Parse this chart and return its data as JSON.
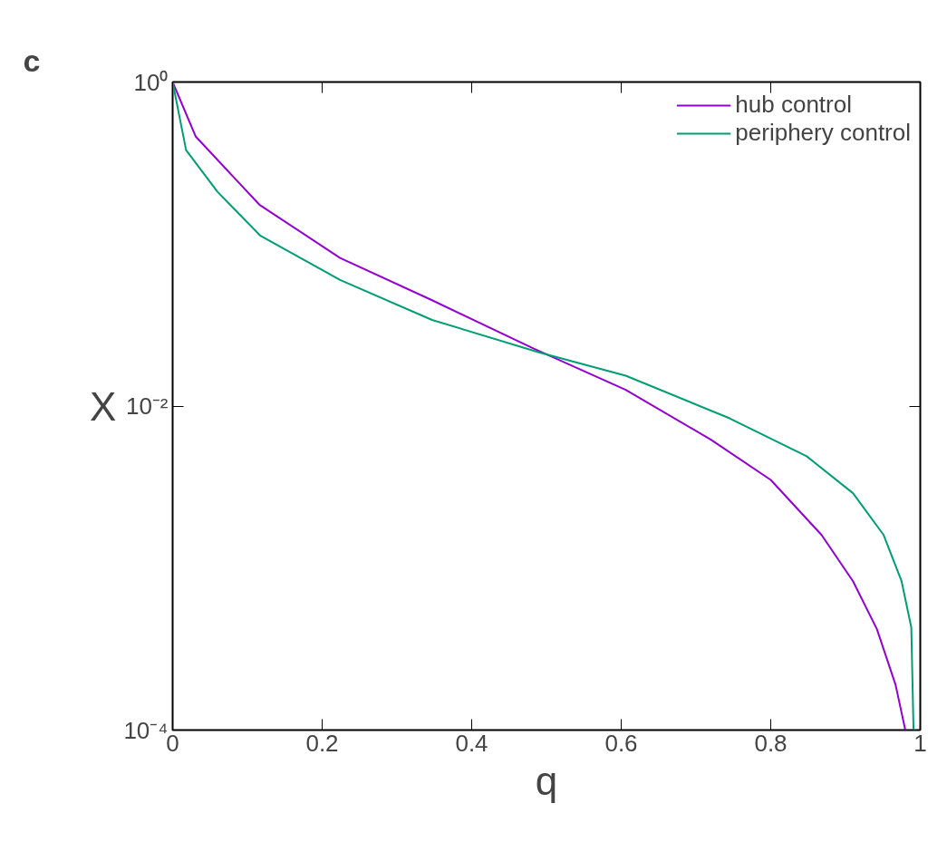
{
  "chart_data": {
    "type": "line",
    "title": "c",
    "xlabel": "q",
    "ylabel": "X",
    "log": "y",
    "xlim": [
      0,
      1
    ],
    "ylim": [
      0.0001,
      1
    ],
    "xticks": [
      0,
      0.2,
      0.4,
      0.6,
      0.8,
      1
    ],
    "yticks": [
      {
        "value": 1,
        "label": "10⁰"
      },
      {
        "value": 0.01,
        "label": "10⁻²"
      },
      {
        "value": 0.0001,
        "label": "10⁻⁴"
      }
    ],
    "grid": false,
    "legend": "top right",
    "line_style": "solid",
    "series": [
      {
        "name": "hub control",
        "color": "#9400d3",
        "x": [
          0,
          0.031,
          0.116,
          0.224,
          0.347,
          0.483,
          0.606,
          0.72,
          0.8,
          0.868,
          0.91,
          0.942,
          0.967,
          0.98
        ],
        "values": [
          1,
          0.46,
          0.175,
          0.082,
          0.045,
          0.0226,
          0.0126,
          0.0062,
          0.0035,
          0.0016,
          0.00083,
          0.00042,
          0.00019,
          0.0001
        ]
      },
      {
        "name": "periphery control",
        "color": "#009e73",
        "x": [
          0,
          0.018,
          0.06,
          0.117,
          0.224,
          0.347,
          0.491,
          0.606,
          0.745,
          0.848,
          0.91,
          0.951,
          0.975,
          0.988,
          0.991
        ],
        "values": [
          1,
          0.38,
          0.21,
          0.113,
          0.06,
          0.034,
          0.0214,
          0.0154,
          0.0084,
          0.0049,
          0.0029,
          0.0016,
          0.00083,
          0.00043,
          0.0001
        ]
      }
    ]
  }
}
